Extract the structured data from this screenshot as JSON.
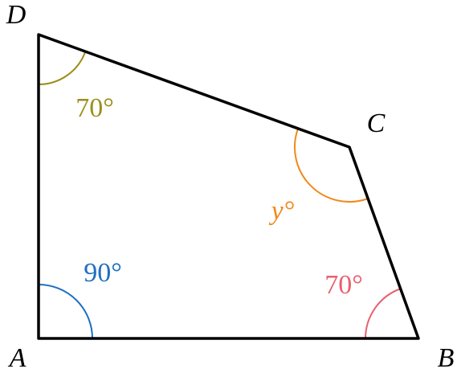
{
  "vertices": [
    {
      "label": "A"
    },
    {
      "label": "B"
    },
    {
      "label": "C"
    },
    {
      "label": "D"
    }
  ],
  "angles": [
    {
      "label": "90°"
    },
    {
      "label": "70°"
    },
    {
      "label": "y°"
    },
    {
      "label": "70°"
    }
  ]
}
